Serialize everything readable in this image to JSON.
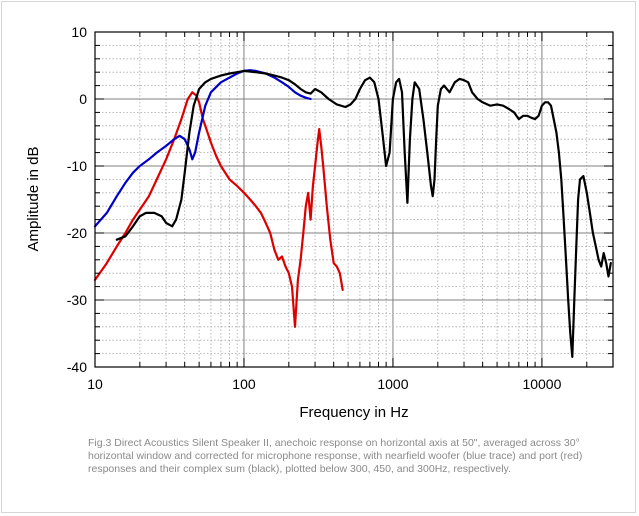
{
  "caption": "Fig.3 Direct Acoustics Silent Speaker II, anechoic response on horizontal axis at 50\", averaged across 30° horizontal window and corrected for microphone response, with nearfield woofer (blue trace) and port (red) responses and their complex sum (black), plotted below 300, 450, and 300Hz, respectively.",
  "chart_data": {
    "type": "line",
    "title": "",
    "xlabel": "Frequency in Hz",
    "ylabel": "Amplitude in dB",
    "xscale": "log",
    "xlim": [
      10,
      30000
    ],
    "ylim": [
      -40,
      10
    ],
    "grid": true,
    "x_tick_labels": [
      "10",
      "100",
      "1000",
      "10000"
    ],
    "y_tick_labels": [
      "10",
      "0",
      "-10",
      "-20",
      "-30",
      "-40"
    ],
    "series": [
      {
        "color": "#000000",
        "x": [
          14,
          16,
          18,
          20,
          22,
          25,
          28,
          30,
          33,
          35,
          38,
          40,
          43,
          46,
          50,
          55,
          60,
          70,
          80,
          90,
          100,
          120,
          140,
          160,
          180,
          200,
          220,
          240,
          260,
          280,
          300,
          330,
          370,
          420,
          480,
          520,
          560,
          600,
          650,
          700,
          750,
          800,
          850,
          900,
          950,
          1000,
          1050,
          1100,
          1150,
          1200,
          1250,
          1300,
          1350,
          1400,
          1500,
          1600,
          1700,
          1800,
          1850,
          1900,
          1950,
          2000,
          2100,
          2200,
          2400,
          2600,
          2800,
          3000,
          3200,
          3400,
          3700,
          4000,
          4500,
          5000,
          5500,
          6000,
          6500,
          7000,
          7500,
          8000,
          8500,
          9000,
          9500,
          10000,
          10500,
          11000,
          11500,
          12000,
          12500,
          13000,
          13500,
          14000,
          14500,
          15000,
          15500,
          16000,
          16500,
          17000,
          17500,
          18000,
          19000,
          20000,
          21000,
          22000,
          23000,
          24000,
          25000,
          26000,
          27000,
          28000,
          29000
        ],
        "y": [
          -21,
          -20.5,
          -19,
          -17.5,
          -17,
          -17,
          -17.5,
          -18.5,
          -19,
          -18,
          -15,
          -11,
          -5,
          -1,
          1.5,
          2.5,
          3,
          3.5,
          3.8,
          4,
          4.2,
          4,
          3.8,
          3.5,
          3.2,
          2.8,
          2.2,
          1.5,
          1,
          0.8,
          1.5,
          1,
          0,
          -0.8,
          -1.2,
          -0.8,
          0,
          1.5,
          2.8,
          3.2,
          2.5,
          0,
          -5,
          -10,
          -8,
          0,
          2.5,
          3,
          1,
          -8,
          -15.5,
          -6,
          0,
          2.5,
          1.5,
          -3,
          -8,
          -13,
          -14.5,
          -12,
          -6,
          -1,
          1.5,
          2,
          1,
          2.5,
          3,
          2.8,
          2.5,
          1,
          0,
          -0.5,
          -1,
          -0.8,
          -1,
          -1.5,
          -2,
          -3,
          -2.5,
          -2.5,
          -2.8,
          -3,
          -2.5,
          -1,
          -0.5,
          -0.5,
          -1,
          -3,
          -5,
          -8,
          -12,
          -18,
          -24,
          -30,
          -35,
          -38.5,
          -30,
          -22,
          -15,
          -12,
          -11.5,
          -14,
          -17,
          -20,
          -22,
          -24,
          -25,
          -23,
          -24.5,
          -26.5,
          -24.5
        ]
      },
      {
        "color": "#0000c8",
        "x": [
          10,
          12,
          14,
          16,
          18,
          20,
          23,
          26,
          30,
          34,
          37,
          40,
          43,
          45,
          47,
          50,
          55,
          60,
          70,
          80,
          90,
          100,
          110,
          120,
          140,
          160,
          180,
          200,
          220,
          240,
          260,
          280
        ],
        "y": [
          -19,
          -17,
          -14.5,
          -12.5,
          -11,
          -10,
          -9,
          -8,
          -7,
          -6,
          -5.5,
          -6,
          -7.5,
          -9,
          -8,
          -5,
          -1,
          1,
          2.5,
          3.2,
          3.8,
          4.2,
          4.3,
          4.2,
          3.8,
          3.2,
          2.5,
          1.8,
          1,
          0.5,
          0.2,
          0
        ]
      },
      {
        "color": "#dc0000",
        "x": [
          10,
          12,
          14,
          16,
          18,
          20,
          23,
          26,
          30,
          34,
          38,
          42,
          45,
          48,
          50,
          53,
          55,
          60,
          65,
          70,
          80,
          90,
          100,
          110,
          120,
          130,
          140,
          150,
          160,
          170,
          180,
          190,
          200,
          210,
          220,
          230,
          240,
          250,
          260,
          270,
          280,
          290,
          300,
          310,
          320,
          330,
          340,
          360,
          380,
          400,
          420,
          440,
          460
        ],
        "y": [
          -27,
          -24.5,
          -22,
          -20,
          -18,
          -16.5,
          -14.5,
          -12,
          -9,
          -6,
          -3,
          0,
          1,
          0.5,
          -0.5,
          -3,
          -4,
          -6.5,
          -8.5,
          -10,
          -12,
          -13,
          -14,
          -15,
          -16,
          -17,
          -18.5,
          -20,
          -22.5,
          -24,
          -23.5,
          -25,
          -26,
          -28,
          -34,
          -27,
          -24,
          -20,
          -16,
          -14,
          -18,
          -13,
          -10,
          -7,
          -4.5,
          -7,
          -10,
          -16,
          -21,
          -24.5,
          -25,
          -26,
          -28.5
        ]
      }
    ]
  }
}
